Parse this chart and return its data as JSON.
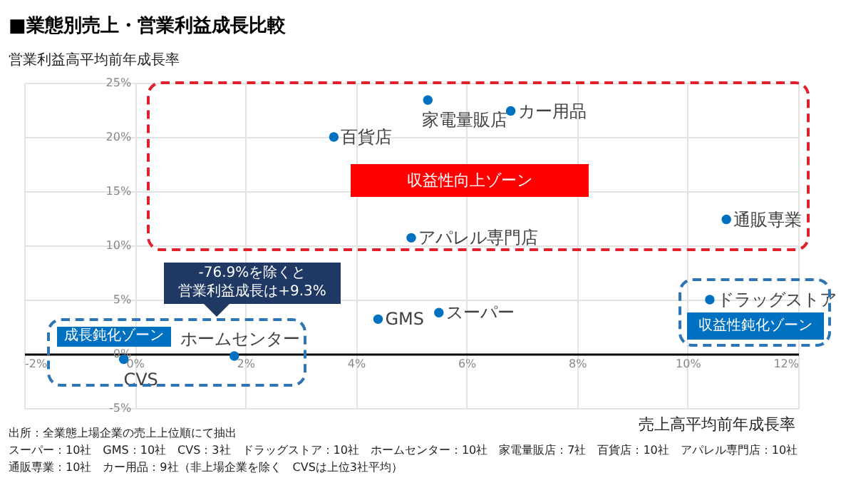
{
  "chart_data": {
    "type": "scatter",
    "title": "■業態別売上・営業利益成長比較",
    "xlabel": "売上高平均前年成長率",
    "ylabel": "営業利益高平均前年成長率",
    "color": "#0070c0",
    "marker": "circle",
    "grid": true,
    "x": [
      3.6,
      5.3,
      6.8,
      5.0,
      10.7,
      4.4,
      5.5,
      10.4,
      1.8,
      -0.2
    ],
    "values": [
      20.0,
      23.4,
      22.4,
      10.7,
      12.4,
      3.2,
      3.8,
      5.0,
      -0.2,
      -0.5
    ],
    "xlim": [
      -2,
      12
    ],
    "xticks": [
      {
        "value": -2,
        "label": "-2%"
      },
      {
        "value": 0,
        "label": "0%"
      },
      {
        "value": 2,
        "label": "2%"
      },
      {
        "value": 4,
        "label": "4%"
      },
      {
        "value": 6,
        "label": "6%"
      },
      {
        "value": 8,
        "label": "8%"
      },
      {
        "value": 10,
        "label": "10%"
      },
      {
        "value": 12,
        "label": "12%"
      }
    ],
    "ylim": [
      -5,
      25
    ],
    "yticks": [
      {
        "value": -5,
        "label": "-5%"
      },
      {
        "value": 0,
        "label": "0%"
      },
      {
        "value": 5,
        "label": "5%"
      },
      {
        "value": 10,
        "label": "10%"
      },
      {
        "value": 15,
        "label": "15%"
      },
      {
        "value": 20,
        "label": "20%"
      },
      {
        "value": 25,
        "label": "25%"
      }
    ],
    "annotations": [
      {
        "text": "百貨店",
        "x": 3.6,
        "y": 20.0
      },
      {
        "text": "家電量販店",
        "x": 5.3,
        "y": 23.4
      },
      {
        "text": "カー用品",
        "x": 6.8,
        "y": 22.4
      },
      {
        "text": "アパレル専門店",
        "x": 5.0,
        "y": 10.7
      },
      {
        "text": "通販専業",
        "x": 10.7,
        "y": 12.4
      },
      {
        "text": "GMS",
        "x": 4.4,
        "y": 3.2
      },
      {
        "text": "スーパー",
        "x": 5.5,
        "y": 3.8
      },
      {
        "text": "ドラッグストア",
        "x": 10.4,
        "y": 5.0
      },
      {
        "text": "ホームセンター",
        "x": 1.8,
        "y": -0.2
      },
      {
        "text": "CVS",
        "x": -0.2,
        "y": -0.5
      },
      "収益性向上ゾーン",
      "成長鈍化ゾーン",
      "収益性鈍化ゾーン",
      "-76.9%を除くと",
      "営業利益成長は+9.3%",
      "出所：全業態上場企業の売上上位順にて抽出",
      "スーパー：10社　GMS：10社　CVS：3社　ドラッグストア：10社　ホームセンター：10社　家電量販店：7社　百貨店：10社　アパレル専門店：10社",
      "通販専業：10社　カー用品：9社（非上場企業を除く　CVSは上位3社平均）"
    ]
  }
}
